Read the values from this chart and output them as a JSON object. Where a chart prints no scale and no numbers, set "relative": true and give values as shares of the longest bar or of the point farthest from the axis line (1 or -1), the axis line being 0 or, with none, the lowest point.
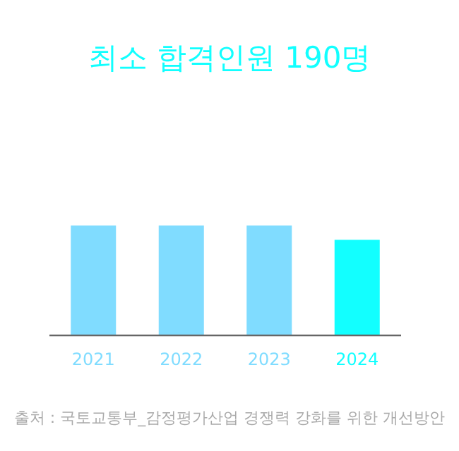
{
  "chart_data": {
    "type": "bar",
    "title": "최소 합격인원 190명",
    "relative": true,
    "categories": [
      "2021",
      "2022",
      "2023",
      "2024"
    ],
    "values": [
      1,
      1,
      1,
      0.87
    ],
    "colors": [
      "#80dcff",
      "#80dcff",
      "#80dcff",
      "#12ffff"
    ],
    "annotations": [
      "출처 : 국토교통부_감정평가산업 경쟁력 강화를 위한 개선방안"
    ]
  }
}
